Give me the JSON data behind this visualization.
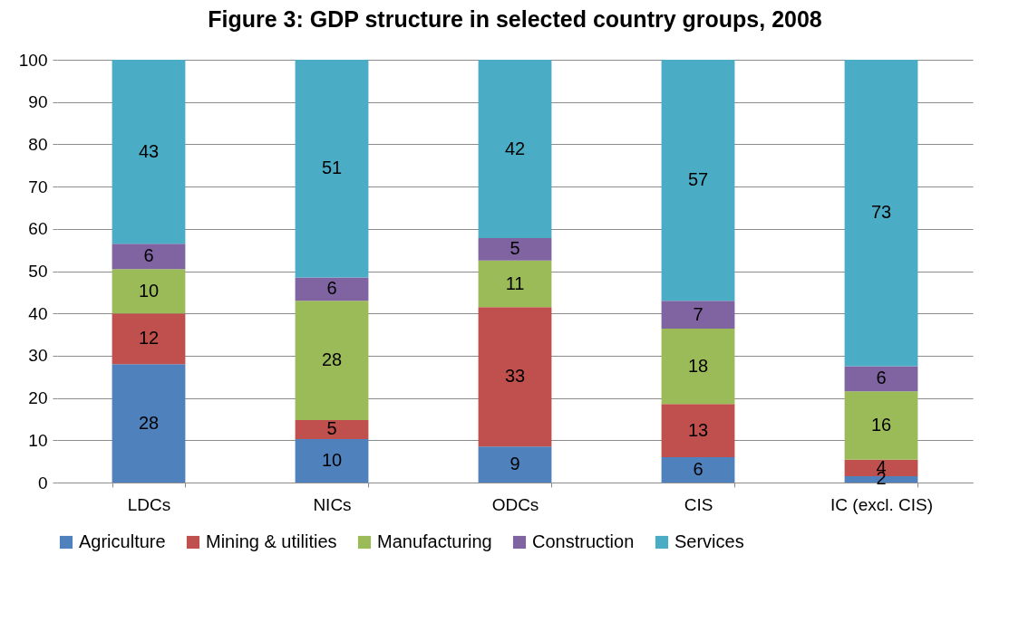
{
  "chart_data": {
    "type": "bar",
    "title": "Figure 3: GDP structure in selected country groups, 2008",
    "categories": [
      "LDCs",
      "NICs",
      "ODCs",
      "CIS",
      "IC (excl. CIS)"
    ],
    "stacked": true,
    "ylim": [
      0,
      100
    ],
    "yticks": [
      0,
      10,
      20,
      30,
      40,
      50,
      60,
      70,
      80,
      90,
      100
    ],
    "grid": "y",
    "legend": "bottom",
    "series": [
      {
        "name": "Agriculture",
        "color": "#4f81bd",
        "values": [
          28,
          10.3,
          8.5,
          6,
          1.5
        ],
        "value_labels": [
          "28",
          "10",
          "9",
          "6",
          "2"
        ]
      },
      {
        "name": "Mining & utilities",
        "color": "#c0504d",
        "values": [
          12,
          4.5,
          33,
          12.6,
          3.9
        ],
        "value_labels": [
          "12",
          "5",
          "33",
          "13",
          "4"
        ]
      },
      {
        "name": "Manufacturing",
        "color": "#9bbb59",
        "values": [
          10.5,
          28.2,
          11,
          17.8,
          16.2
        ],
        "value_labels": [
          "10",
          "28",
          "11",
          "18",
          "16"
        ]
      },
      {
        "name": "Construction",
        "color": "#8064a2",
        "values": [
          6,
          5.5,
          5.3,
          6.6,
          5.9
        ],
        "value_labels": [
          "6",
          "6",
          "5",
          "7",
          "6"
        ]
      },
      {
        "name": "Services",
        "color": "#4bacc6",
        "values": [
          43.5,
          51.5,
          42.2,
          57,
          72.5
        ],
        "value_labels": [
          "43",
          "51",
          "42",
          "57",
          "73"
        ]
      }
    ]
  }
}
